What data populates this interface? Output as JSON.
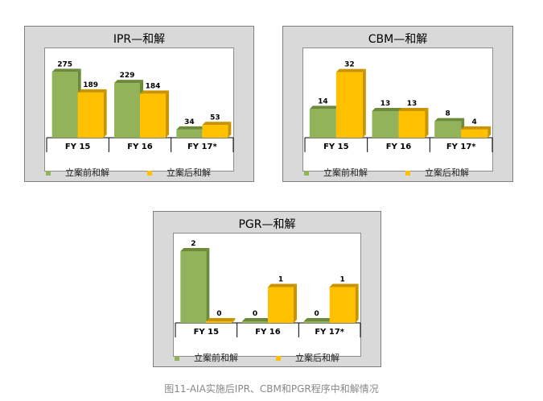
{
  "colors": {
    "series1": "#92b35a",
    "series2": "#ffc000",
    "series1_dark": "#6d8a3a",
    "series2_dark": "#c99400"
  },
  "caption": "图11-AIA实施后IPR、CBM和PGR程序中和解情况",
  "chart_data": [
    {
      "type": "bar",
      "title": "IPR—和解",
      "categories": [
        "FY 15",
        "FY 16",
        "FY 17*"
      ],
      "series": [
        {
          "name": "立案前和解",
          "values": [
            275,
            229,
            34
          ]
        },
        {
          "name": "立案后和解",
          "values": [
            189,
            184,
            53
          ]
        }
      ],
      "ylim": [
        0,
        300
      ],
      "grid": false,
      "legend": "bottom"
    },
    {
      "type": "bar",
      "title": "CBM—和解",
      "categories": [
        "FY 15",
        "FY 16",
        "FY 17*"
      ],
      "series": [
        {
          "name": "立案前和解",
          "values": [
            14,
            13,
            8
          ]
        },
        {
          "name": "立案后和解",
          "values": [
            32,
            13,
            4
          ]
        }
      ],
      "ylim": [
        0,
        35
      ],
      "grid": false,
      "legend": "bottom"
    },
    {
      "type": "bar",
      "title": "PGR—和解",
      "categories": [
        "FY 15",
        "FY 16",
        "FY 17*"
      ],
      "series": [
        {
          "name": "立案前和解",
          "values": [
            2,
            0,
            0
          ]
        },
        {
          "name": "立案后和解",
          "values": [
            0,
            1,
            1
          ]
        }
      ],
      "ylim": [
        0,
        2
      ],
      "grid": false,
      "legend": "bottom"
    }
  ]
}
